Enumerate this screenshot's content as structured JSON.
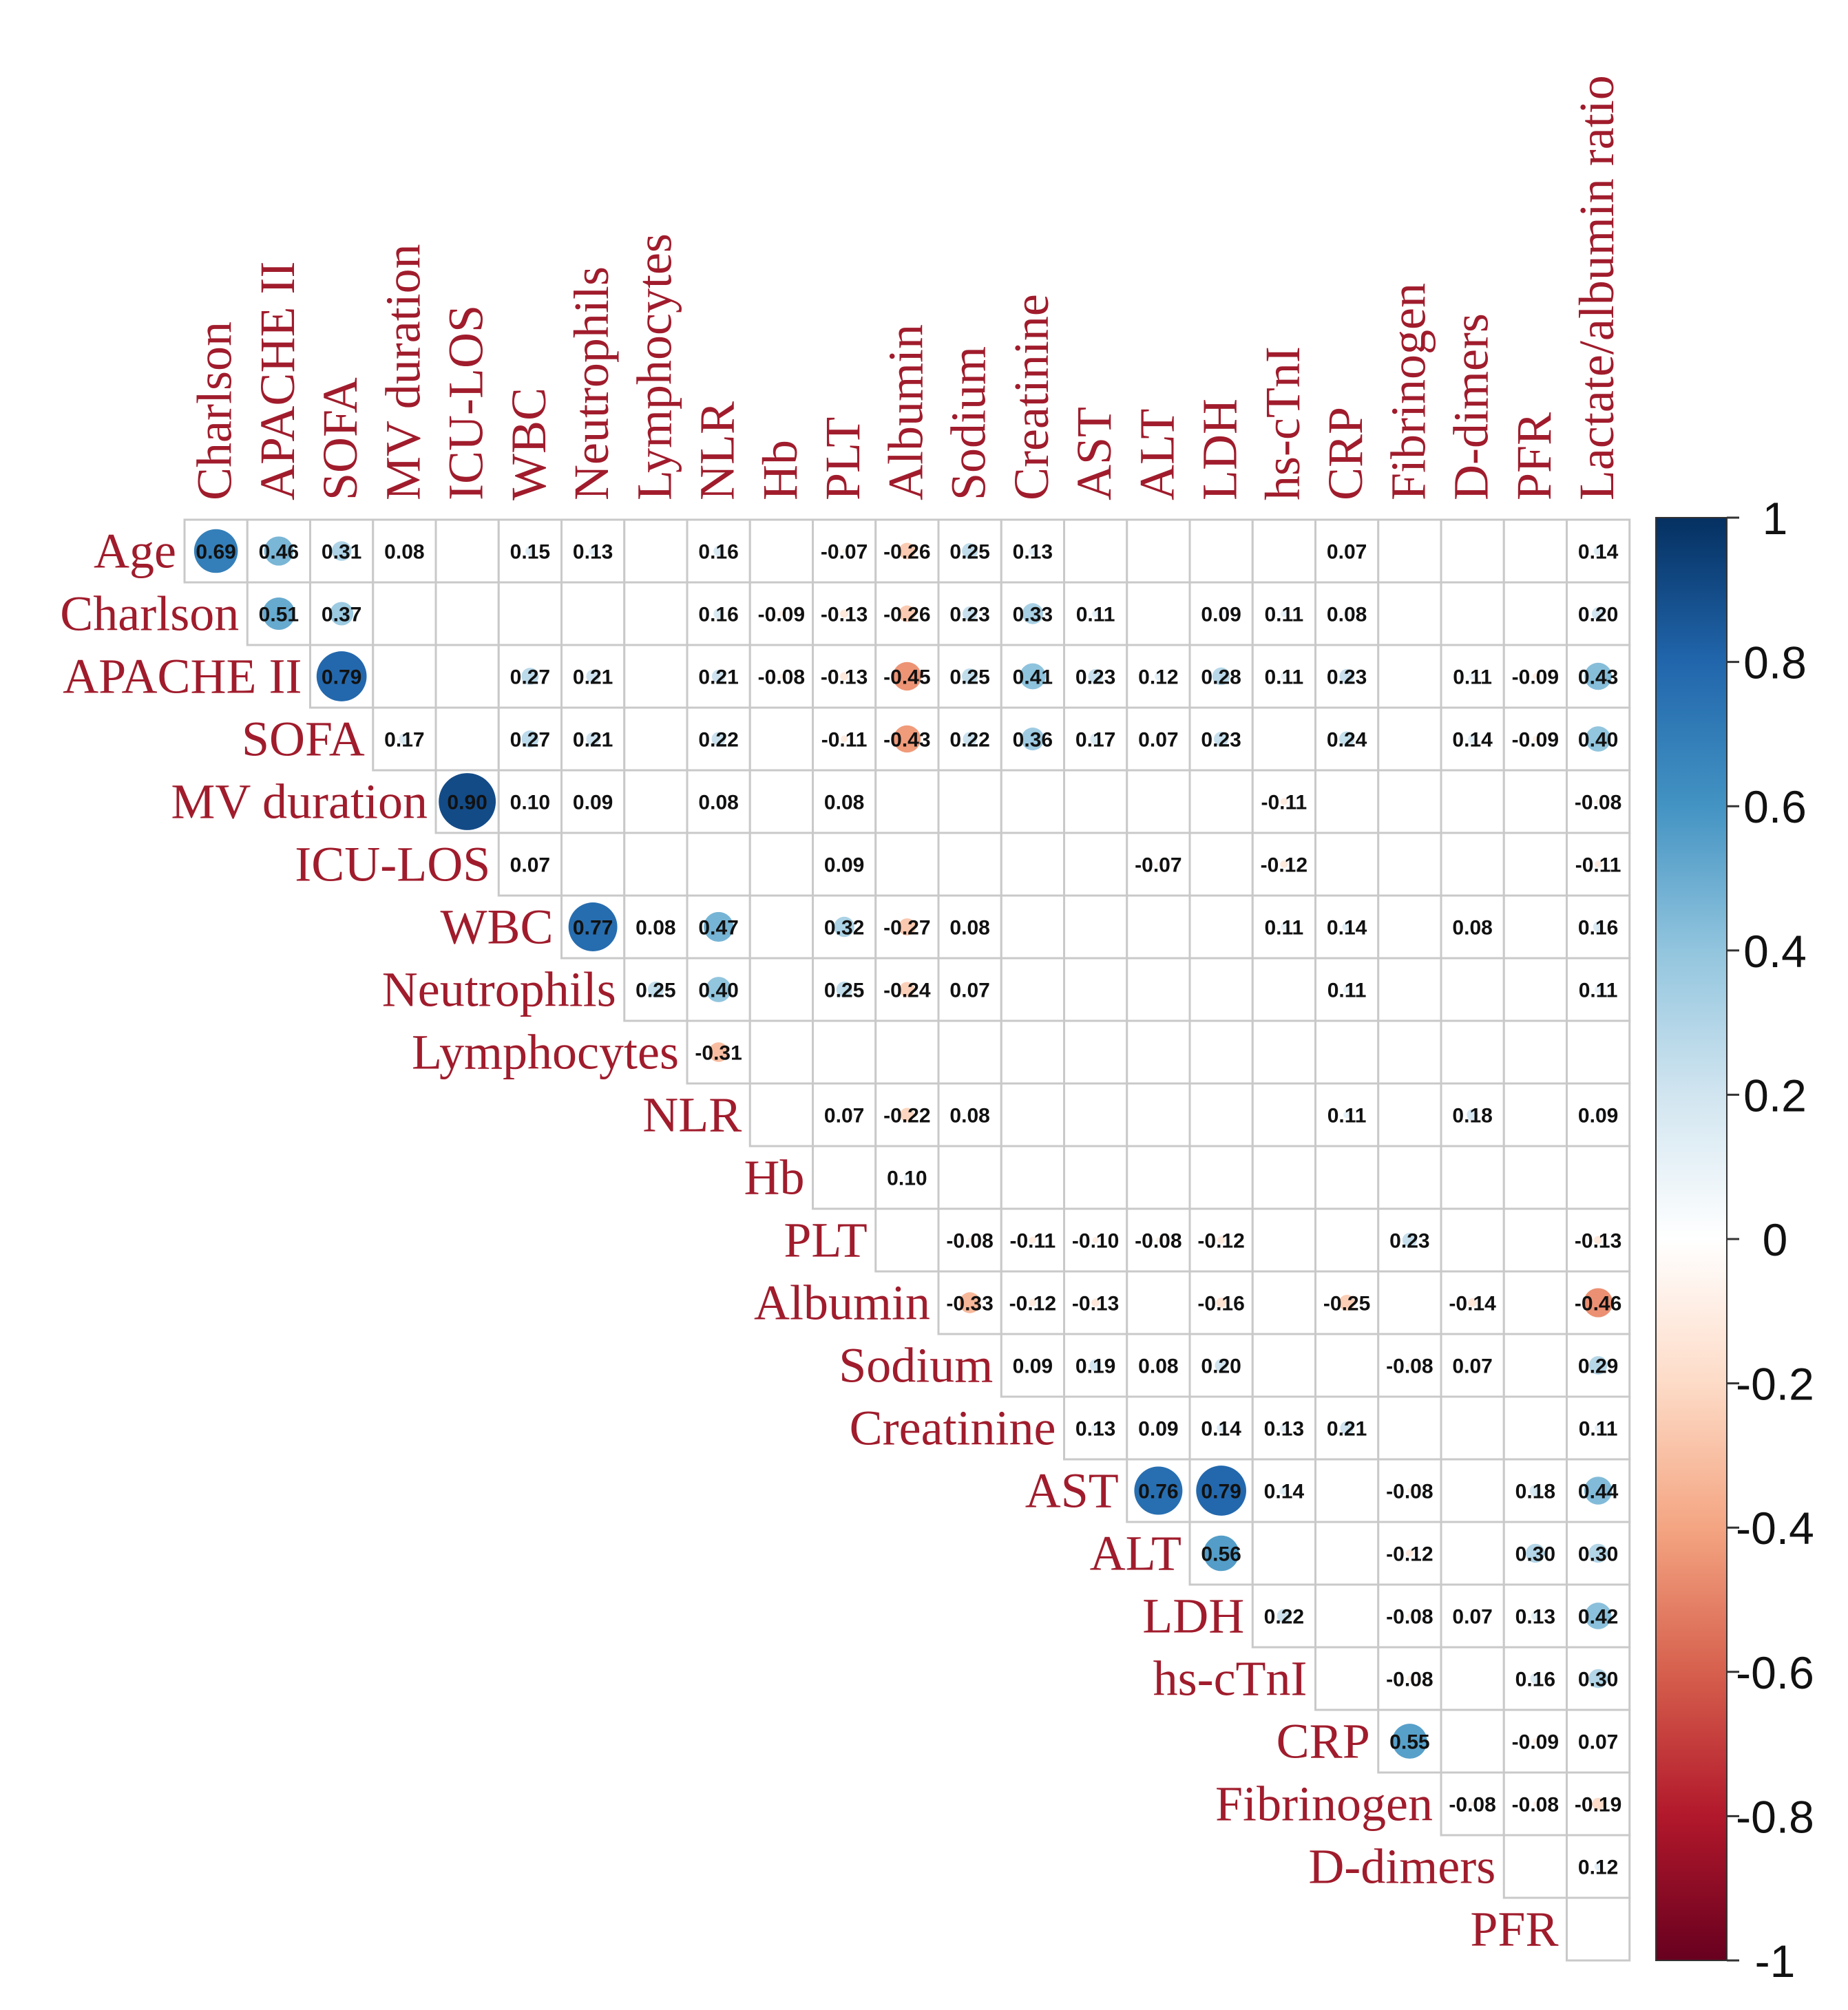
{
  "chart_data": {
    "type": "heatmap",
    "subtype": "correlation-upper-triangle",
    "variables": [
      "Age",
      "Charlson",
      "APACHE II",
      "SOFA",
      "MV duration",
      "ICU-LOS",
      "WBC",
      "Neutrophils",
      "Lymphocytes",
      "NLR",
      "Hb",
      "PLT",
      "Albumin",
      "Sodium",
      "Creatinine",
      "AST",
      "ALT",
      "LDH",
      "hs-cTnI",
      "CRP",
      "Fibrinogen",
      "D-dimers",
      "PFR",
      "Lactate/albumin ratio"
    ],
    "row_labels": [
      "Age",
      "Charlson",
      "APACHE II",
      "SOFA",
      "MV duration",
      "ICU-LOS",
      "WBC",
      "Neutrophils",
      "Lymphocytes",
      "NLR",
      "Hb",
      "PLT",
      "Albumin",
      "Sodium",
      "Creatinine",
      "AST",
      "ALT",
      "LDH",
      "hs-cTnI",
      "CRP",
      "Fibrinogen",
      "D-dimers",
      "PFR"
    ],
    "col_labels": [
      "Charlson",
      "APACHE II",
      "SOFA",
      "MV duration",
      "ICU-LOS",
      "WBC",
      "Neutrophils",
      "Lymphocytes",
      "NLR",
      "Hb",
      "PLT",
      "Albumin",
      "Sodium",
      "Creatinine",
      "AST",
      "ALT",
      "LDH",
      "hs-cTnI",
      "CRP",
      "Fibrinogen",
      "D-dimers",
      "PFR",
      "Lactate/albumin ratio"
    ],
    "rows": [
      [
        "0.69",
        "0.46",
        "0.31",
        "0.08",
        "",
        "0.15",
        "0.13",
        "",
        "0.16",
        "",
        "-0.07",
        "-0.26",
        "0.25",
        "0.13",
        "",
        "",
        "",
        "",
        "0.07",
        "",
        "",
        "",
        "0.14"
      ],
      [
        null,
        "0.51",
        "0.37",
        "",
        "",
        "",
        "",
        "",
        "0.16",
        "-0.09",
        "-0.13",
        "-0.26",
        "0.23",
        "0.33",
        "0.11",
        "",
        "0.09",
        "0.11",
        "0.08",
        "",
        "",
        "",
        "0.20"
      ],
      [
        null,
        null,
        "0.79",
        "",
        "",
        "0.27",
        "0.21",
        "",
        "0.21",
        "-0.08",
        "-0.13",
        "-0.45",
        "0.25",
        "0.41",
        "0.23",
        "0.12",
        "0.28",
        "0.11",
        "0.23",
        "",
        "0.11",
        "-0.09",
        "0.43"
      ],
      [
        null,
        null,
        null,
        "0.17",
        "",
        "0.27",
        "0.21",
        "",
        "0.22",
        "",
        "-0.11",
        "-0.43",
        "0.22",
        "0.36",
        "0.17",
        "0.07",
        "0.23",
        "",
        "0.24",
        "",
        "0.14",
        "-0.09",
        "0.40"
      ],
      [
        null,
        null,
        null,
        null,
        "0.90",
        "0.10",
        "0.09",
        "",
        "0.08",
        "",
        "0.08",
        "",
        "",
        "",
        "",
        "",
        "",
        "-0.11",
        "",
        "",
        "",
        "",
        "-0.08"
      ],
      [
        null,
        null,
        null,
        null,
        null,
        "0.07",
        "",
        "",
        "",
        "",
        "0.09",
        "",
        "",
        "",
        "",
        "-0.07",
        "",
        "-0.12",
        "",
        "",
        "",
        "",
        "-0.11"
      ],
      [
        null,
        null,
        null,
        null,
        null,
        null,
        "0.77",
        "0.08",
        "0.47",
        "",
        "0.32",
        "-0.27",
        "0.08",
        "",
        "",
        "",
        "",
        "0.11",
        "0.14",
        "",
        "0.08",
        "",
        "0.16"
      ],
      [
        null,
        null,
        null,
        null,
        null,
        null,
        null,
        "0.25",
        "0.40",
        "",
        "0.25",
        "-0.24",
        "0.07",
        "",
        "",
        "",
        "",
        "",
        "0.11",
        "",
        "",
        "",
        "0.11"
      ],
      [
        null,
        null,
        null,
        null,
        null,
        null,
        null,
        null,
        "-0.31",
        "",
        "",
        "",
        "",
        "",
        "",
        "",
        "",
        "",
        "",
        "",
        "",
        "",
        ""
      ],
      [
        null,
        null,
        null,
        null,
        null,
        null,
        null,
        null,
        null,
        "",
        "0.07",
        "-0.22",
        "0.08",
        "",
        "",
        "",
        "",
        "",
        "0.11",
        "",
        "0.18",
        "",
        "0.09"
      ],
      [
        null,
        null,
        null,
        null,
        null,
        null,
        null,
        null,
        null,
        null,
        "",
        "0.10",
        "",
        "",
        "",
        "",
        "",
        "",
        "",
        "",
        "",
        "",
        ""
      ],
      [
        null,
        null,
        null,
        null,
        null,
        null,
        null,
        null,
        null,
        null,
        null,
        "",
        "-0.08",
        "-0.11",
        "-0.10",
        "-0.08",
        "-0.12",
        "",
        "",
        "0.23",
        "",
        "",
        "-0.13"
      ],
      [
        null,
        null,
        null,
        null,
        null,
        null,
        null,
        null,
        null,
        null,
        null,
        null,
        "-0.33",
        "-0.12",
        "-0.13",
        "",
        "-0.16",
        "",
        "-0.25",
        "",
        "-0.14",
        "",
        "-0.46"
      ],
      [
        null,
        null,
        null,
        null,
        null,
        null,
        null,
        null,
        null,
        null,
        null,
        null,
        null,
        "0.09",
        "0.19",
        "0.08",
        "0.20",
        "",
        "",
        "-0.08",
        "0.07",
        "",
        "0.29"
      ],
      [
        null,
        null,
        null,
        null,
        null,
        null,
        null,
        null,
        null,
        null,
        null,
        null,
        null,
        null,
        "0.13",
        "0.09",
        "0.14",
        "0.13",
        "0.21",
        "",
        "",
        "",
        "0.11"
      ],
      [
        null,
        null,
        null,
        null,
        null,
        null,
        null,
        null,
        null,
        null,
        null,
        null,
        null,
        null,
        null,
        "0.76",
        "0.79",
        "0.14",
        "",
        "-0.08",
        "",
        "0.18",
        "0.44"
      ],
      [
        null,
        null,
        null,
        null,
        null,
        null,
        null,
        null,
        null,
        null,
        null,
        null,
        null,
        null,
        null,
        null,
        "0.56",
        "",
        "",
        "-0.12",
        "",
        "0.30",
        "0.30"
      ],
      [
        null,
        null,
        null,
        null,
        null,
        null,
        null,
        null,
        null,
        null,
        null,
        null,
        null,
        null,
        null,
        null,
        null,
        "0.22",
        "",
        "-0.08",
        "0.07",
        "0.13",
        "0.42"
      ],
      [
        null,
        null,
        null,
        null,
        null,
        null,
        null,
        null,
        null,
        null,
        null,
        null,
        null,
        null,
        null,
        null,
        null,
        null,
        "",
        "-0.08",
        "",
        "0.16",
        "0.30"
      ],
      [
        null,
        null,
        null,
        null,
        null,
        null,
        null,
        null,
        null,
        null,
        null,
        null,
        null,
        null,
        null,
        null,
        null,
        null,
        null,
        "0.55",
        "",
        "-0.09",
        "0.07"
      ],
      [
        null,
        null,
        null,
        null,
        null,
        null,
        null,
        null,
        null,
        null,
        null,
        null,
        null,
        null,
        null,
        null,
        null,
        null,
        null,
        null,
        "-0.08",
        "-0.08",
        "-0.19"
      ],
      [
        null,
        null,
        null,
        null,
        null,
        null,
        null,
        null,
        null,
        null,
        null,
        null,
        null,
        null,
        null,
        null,
        null,
        null,
        null,
        null,
        null,
        "",
        "0.12"
      ],
      [
        null,
        null,
        null,
        null,
        null,
        null,
        null,
        null,
        null,
        null,
        null,
        null,
        null,
        null,
        null,
        null,
        null,
        null,
        null,
        null,
        null,
        null,
        ""
      ]
    ],
    "colorbar": {
      "ticks": [
        "1",
        "0.8",
        "0.6",
        "0.4",
        "0.2",
        "0",
        "-0.2",
        "-0.4",
        "-0.6",
        "-0.8",
        "-1"
      ],
      "range": [
        -1,
        1
      ],
      "colors": {
        "n1": "#67001f",
        "n08": "#b2182b",
        "n06": "#d6604d",
        "n04": "#f4a582",
        "n02": "#fddbc7",
        "zero": "#ffffff",
        "p02": "#d1e5f0",
        "p04": "#92c5de",
        "p06": "#4393c3",
        "p08": "#2166ac",
        "p1": "#053061"
      }
    }
  }
}
